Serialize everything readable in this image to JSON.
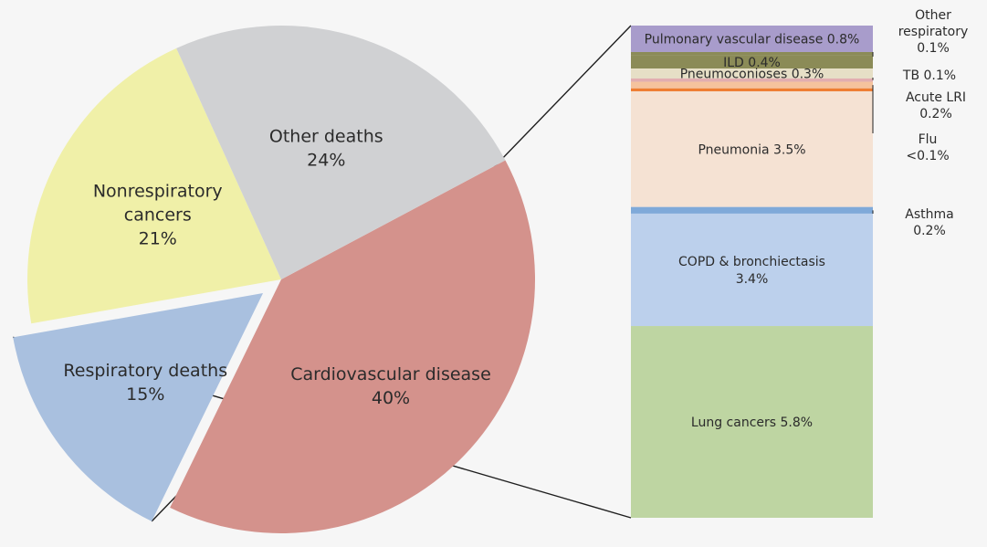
{
  "chart_data": [
    {
      "type": "pie",
      "unit": "%",
      "slices": [
        {
          "label_lines": [
            "Cardiovascular disease"
          ],
          "value": 40,
          "value_label": "40%",
          "color": "#d4928c"
        },
        {
          "label_lines": [
            "Respiratory deaths"
          ],
          "value": 15,
          "value_label": "15%",
          "color": "#a9c0df",
          "exploded": true
        },
        {
          "label_lines": [
            "Nonrespiratory",
            "cancers"
          ],
          "value": 21,
          "value_label": "21%",
          "color": "#f0f0a8"
        },
        {
          "label_lines": [
            "Other deaths"
          ],
          "value": 24,
          "value_label": "24%",
          "color": "#d0d1d3"
        }
      ]
    },
    {
      "type": "bar",
      "stacked": true,
      "unit": "%",
      "parent": "Respiratory deaths",
      "order": "top-to-bottom",
      "segments": [
        {
          "label": "Pulmonary vascular disease 0.8%",
          "value": 0.8,
          "color": "#a89ccb",
          "label_position": "inside"
        },
        {
          "label": "Other respiratory 0.1%",
          "label_lines": [
            "Other",
            "respiratory",
            "0.1%"
          ],
          "value": 0.1,
          "color": "#8b8b57",
          "label_position": "outside"
        },
        {
          "label": "ILD 0.4%",
          "value": 0.4,
          "color": "#8b8b57",
          "label_position": "inside"
        },
        {
          "label": "Pneumoconioses 0.3%",
          "value": 0.3,
          "color": "#e6dfc6",
          "label_position": "inside"
        },
        {
          "label": "TB 0.1%",
          "label_lines": [
            "TB 0.1%"
          ],
          "value": 0.1,
          "color": "#e2aeb0",
          "label_position": "outside"
        },
        {
          "label": "Acute LRI 0.2%",
          "label_lines": [
            "Acute LRI",
            "0.2%"
          ],
          "value": 0.2,
          "color": "#f5c39d",
          "label_position": "outside"
        },
        {
          "label": "Flu <0.1%",
          "label_lines": [
            "Flu",
            "<0.1%"
          ],
          "value": 0.05,
          "color": "#ee7d32",
          "label_position": "outside"
        },
        {
          "label": "Pneumonia 3.5%",
          "value": 3.5,
          "color": "#f5e2d3",
          "label_position": "inside"
        },
        {
          "label": "Asthma 0.2%",
          "label_lines": [
            "Asthma",
            "0.2%"
          ],
          "value": 0.2,
          "color": "#7fa9d9",
          "label_position": "outside"
        },
        {
          "label": "COPD & bronchiectasis 3.4%",
          "label_lines": [
            "COPD & bronchiectasis",
            "3.4%"
          ],
          "value": 3.4,
          "color": "#bcd0ec",
          "label_position": "inside"
        },
        {
          "label": "Lung cancers 5.8%",
          "value": 5.8,
          "color": "#bed5a2",
          "label_position": "inside"
        }
      ]
    }
  ]
}
